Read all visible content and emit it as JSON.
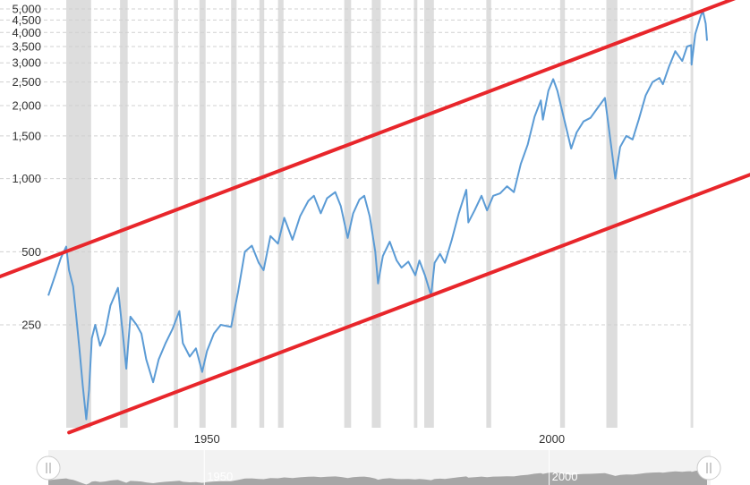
{
  "chart_data": {
    "type": "line",
    "title": "",
    "xlabel": "",
    "ylabel": "",
    "y_scale": "log",
    "grid": "horizontal dashed",
    "xlim": [
      1927,
      2022.5
    ],
    "ylim": [
      90,
      5200
    ],
    "x_tick_labels": [
      {
        "x": 1950,
        "label": "1950"
      },
      {
        "x": 2000,
        "label": "2000"
      }
    ],
    "y_tick_labels": [
      {
        "y": 5000,
        "label": "5,000"
      },
      {
        "y": 4500,
        "label": "4,500"
      },
      {
        "y": 4000,
        "label": "4,000"
      },
      {
        "y": 3500,
        "label": "3,500"
      },
      {
        "y": 3000,
        "label": "3,000"
      },
      {
        "y": 2500,
        "label": "2,500"
      },
      {
        "y": 2000,
        "label": "2,000"
      },
      {
        "y": 1500,
        "label": "1,500"
      },
      {
        "y": 1000,
        "label": "1,000"
      },
      {
        "y": 500,
        "label": "500"
      },
      {
        "y": 250,
        "label": "250"
      }
    ],
    "recessions": [
      [
        1929.6,
        1933.2
      ],
      [
        1937.4,
        1938.5
      ],
      [
        1945.2,
        1945.8
      ],
      [
        1948.9,
        1949.8
      ],
      [
        1953.5,
        1954.3
      ],
      [
        1957.6,
        1958.3
      ],
      [
        1960.3,
        1961.1
      ],
      [
        1969.9,
        1970.9
      ],
      [
        1973.9,
        1975.2
      ],
      [
        1980.0,
        1980.5
      ],
      [
        1981.5,
        1982.9
      ],
      [
        1990.5,
        1991.2
      ],
      [
        2001.2,
        2001.9
      ],
      [
        2007.9,
        2009.5
      ],
      [
        2020.1,
        2020.4
      ]
    ],
    "series": [
      {
        "values": [
          {
            "x": 1927.0,
            "y": 330
          },
          {
            "x": 1928.0,
            "y": 400
          },
          {
            "x": 1928.8,
            "y": 470
          },
          {
            "x": 1929.6,
            "y": 525
          },
          {
            "x": 1930.0,
            "y": 420
          },
          {
            "x": 1930.6,
            "y": 360
          },
          {
            "x": 1931.0,
            "y": 280
          },
          {
            "x": 1931.5,
            "y": 200
          },
          {
            "x": 1932.0,
            "y": 140
          },
          {
            "x": 1932.5,
            "y": 102
          },
          {
            "x": 1932.9,
            "y": 135
          },
          {
            "x": 1933.3,
            "y": 220
          },
          {
            "x": 1933.8,
            "y": 250
          },
          {
            "x": 1934.5,
            "y": 205
          },
          {
            "x": 1935.2,
            "y": 230
          },
          {
            "x": 1936.0,
            "y": 300
          },
          {
            "x": 1937.1,
            "y": 355
          },
          {
            "x": 1937.8,
            "y": 230
          },
          {
            "x": 1938.3,
            "y": 165
          },
          {
            "x": 1938.9,
            "y": 270
          },
          {
            "x": 1939.8,
            "y": 250
          },
          {
            "x": 1940.5,
            "y": 230
          },
          {
            "x": 1941.2,
            "y": 180
          },
          {
            "x": 1942.2,
            "y": 145
          },
          {
            "x": 1943.0,
            "y": 180
          },
          {
            "x": 1944.0,
            "y": 210
          },
          {
            "x": 1945.0,
            "y": 240
          },
          {
            "x": 1946.0,
            "y": 285
          },
          {
            "x": 1946.5,
            "y": 210
          },
          {
            "x": 1947.5,
            "y": 185
          },
          {
            "x": 1948.4,
            "y": 200
          },
          {
            "x": 1949.3,
            "y": 160
          },
          {
            "x": 1950.0,
            "y": 195
          },
          {
            "x": 1951.0,
            "y": 230
          },
          {
            "x": 1952.0,
            "y": 250
          },
          {
            "x": 1953.5,
            "y": 245
          },
          {
            "x": 1954.5,
            "y": 340
          },
          {
            "x": 1955.5,
            "y": 500
          },
          {
            "x": 1956.5,
            "y": 530
          },
          {
            "x": 1957.5,
            "y": 450
          },
          {
            "x": 1958.2,
            "y": 420
          },
          {
            "x": 1959.2,
            "y": 580
          },
          {
            "x": 1960.3,
            "y": 540
          },
          {
            "x": 1961.2,
            "y": 690
          },
          {
            "x": 1962.4,
            "y": 560
          },
          {
            "x": 1963.5,
            "y": 700
          },
          {
            "x": 1964.7,
            "y": 810
          },
          {
            "x": 1965.5,
            "y": 850
          },
          {
            "x": 1966.5,
            "y": 720
          },
          {
            "x": 1967.4,
            "y": 830
          },
          {
            "x": 1968.6,
            "y": 880
          },
          {
            "x": 1969.4,
            "y": 770
          },
          {
            "x": 1970.4,
            "y": 570
          },
          {
            "x": 1971.2,
            "y": 720
          },
          {
            "x": 1972.1,
            "y": 820
          },
          {
            "x": 1972.8,
            "y": 850
          },
          {
            "x": 1973.6,
            "y": 700
          },
          {
            "x": 1974.4,
            "y": 500
          },
          {
            "x": 1974.8,
            "y": 370
          },
          {
            "x": 1975.5,
            "y": 480
          },
          {
            "x": 1976.5,
            "y": 550
          },
          {
            "x": 1977.5,
            "y": 460
          },
          {
            "x": 1978.2,
            "y": 430
          },
          {
            "x": 1979.2,
            "y": 455
          },
          {
            "x": 1980.2,
            "y": 400
          },
          {
            "x": 1980.8,
            "y": 460
          },
          {
            "x": 1981.6,
            "y": 400
          },
          {
            "x": 1982.5,
            "y": 330
          },
          {
            "x": 1983.0,
            "y": 450
          },
          {
            "x": 1983.8,
            "y": 490
          },
          {
            "x": 1984.5,
            "y": 450
          },
          {
            "x": 1985.5,
            "y": 560
          },
          {
            "x": 1986.5,
            "y": 720
          },
          {
            "x": 1987.6,
            "y": 900
          },
          {
            "x": 1987.9,
            "y": 660
          },
          {
            "x": 1988.8,
            "y": 740
          },
          {
            "x": 1989.8,
            "y": 850
          },
          {
            "x": 1990.6,
            "y": 740
          },
          {
            "x": 1991.5,
            "y": 850
          },
          {
            "x": 1992.5,
            "y": 870
          },
          {
            "x": 1993.5,
            "y": 930
          },
          {
            "x": 1994.5,
            "y": 880
          },
          {
            "x": 1995.5,
            "y": 1150
          },
          {
            "x": 1996.5,
            "y": 1380
          },
          {
            "x": 1997.5,
            "y": 1800
          },
          {
            "x": 1998.4,
            "y": 2100
          },
          {
            "x": 1998.7,
            "y": 1750
          },
          {
            "x": 1999.5,
            "y": 2300
          },
          {
            "x": 2000.2,
            "y": 2570
          },
          {
            "x": 2000.8,
            "y": 2300
          },
          {
            "x": 2001.6,
            "y": 1850
          },
          {
            "x": 2002.8,
            "y": 1330
          },
          {
            "x": 2003.6,
            "y": 1550
          },
          {
            "x": 2004.6,
            "y": 1720
          },
          {
            "x": 2005.6,
            "y": 1780
          },
          {
            "x": 2006.6,
            "y": 1950
          },
          {
            "x": 2007.7,
            "y": 2150
          },
          {
            "x": 2008.7,
            "y": 1300
          },
          {
            "x": 2009.2,
            "y": 1000
          },
          {
            "x": 2009.9,
            "y": 1350
          },
          {
            "x": 2010.8,
            "y": 1500
          },
          {
            "x": 2011.7,
            "y": 1450
          },
          {
            "x": 2012.6,
            "y": 1750
          },
          {
            "x": 2013.6,
            "y": 2200
          },
          {
            "x": 2014.6,
            "y": 2500
          },
          {
            "x": 2015.6,
            "y": 2600
          },
          {
            "x": 2016.1,
            "y": 2450
          },
          {
            "x": 2017.0,
            "y": 2900
          },
          {
            "x": 2017.9,
            "y": 3350
          },
          {
            "x": 2018.9,
            "y": 3050
          },
          {
            "x": 2019.6,
            "y": 3500
          },
          {
            "x": 2020.2,
            "y": 3550
          },
          {
            "x": 2020.25,
            "y": 2950
          },
          {
            "x": 2020.8,
            "y": 3950
          },
          {
            "x": 2021.6,
            "y": 4700
          },
          {
            "x": 2021.9,
            "y": 4900
          },
          {
            "x": 2022.3,
            "y": 4350
          },
          {
            "x": 2022.5,
            "y": 3700
          }
        ]
      }
    ],
    "trend_lines": [
      {
        "from": {
          "x": 1927.0,
          "y": 470
        },
        "to": {
          "x": 2022.5,
          "y": 5000
        }
      },
      {
        "from": {
          "x": 1930.0,
          "y": 90
        },
        "to": {
          "x": 2022.5,
          "y": 890
        }
      }
    ],
    "colors": {
      "series": "#5b9bd5",
      "trend": "#e8262b",
      "recession": "#dddddd",
      "grid": "#d0d0d0",
      "navigator_fill": "#a6a6a6",
      "navigator_bg": "#f2f2f2"
    }
  },
  "navigator": {
    "labels": [
      {
        "x": 1950,
        "label": "1950"
      },
      {
        "x": 2000,
        "label": "2000"
      }
    ],
    "left_handle_icon": "drag-handle-icon",
    "right_handle_icon": "drag-handle-icon"
  }
}
